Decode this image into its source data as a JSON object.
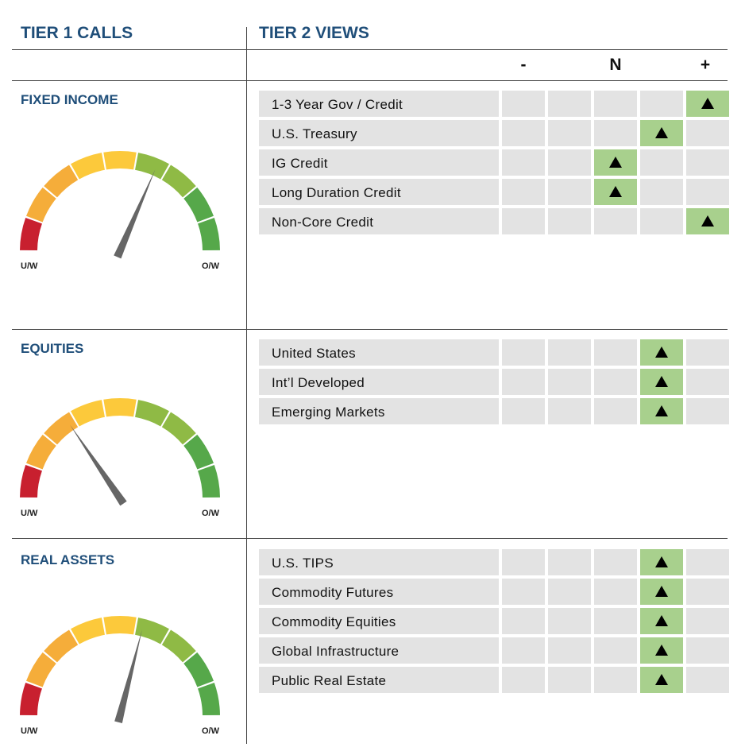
{
  "headers": {
    "tier1": "TIER 1 CALLS",
    "tier2": "TIER 2 VIEWS"
  },
  "scale": {
    "minus": "-",
    "neutral": "N",
    "plus": "+"
  },
  "colors": {
    "header_blue": "#1f4e79",
    "cell_gray": "#e3e3e3",
    "highlight_green": "#a8d08d"
  },
  "chart_data": [
    {
      "type": "gauge",
      "title": "FIXED INCOME",
      "min_label": "U/W",
      "max_label": "O/W",
      "needle_fraction": 0.63,
      "tier2": {
        "type": "table",
        "columns": [
          "-",
          "",
          "N",
          "",
          "+"
        ],
        "rows": [
          {
            "name": "1-3 Year Gov / Credit",
            "position": 4
          },
          {
            "name": "U.S. Treasury",
            "position": 3
          },
          {
            "name": "IG Credit",
            "position": 2
          },
          {
            "name": "Long Duration Credit",
            "position": 2
          },
          {
            "name": "Non-Core Credit",
            "position": 4
          }
        ]
      }
    },
    {
      "type": "gauge",
      "title": "EQUITIES",
      "min_label": "U/W",
      "max_label": "O/W",
      "needle_fraction": 0.31,
      "tier2": {
        "type": "table",
        "columns": [
          "-",
          "",
          "N",
          "",
          "+"
        ],
        "rows": [
          {
            "name": "United States",
            "position": 3
          },
          {
            "name": "Int’l Developed",
            "position": 3
          },
          {
            "name": "Emerging Markets",
            "position": 3
          }
        ]
      }
    },
    {
      "type": "gauge",
      "title": "REAL ASSETS",
      "min_label": "U/W",
      "max_label": "O/W",
      "needle_fraction": 0.58,
      "tier2": {
        "type": "table",
        "columns": [
          "-",
          "",
          "N",
          "",
          "+"
        ],
        "rows": [
          {
            "name": "U.S. TIPS",
            "position": 3
          },
          {
            "name": "Commodity Futures",
            "position": 3
          },
          {
            "name": "Commodity Equities",
            "position": 3
          },
          {
            "name": "Global Infrastructure",
            "position": 3
          },
          {
            "name": "Public Real Estate",
            "position": 3
          }
        ]
      }
    }
  ]
}
